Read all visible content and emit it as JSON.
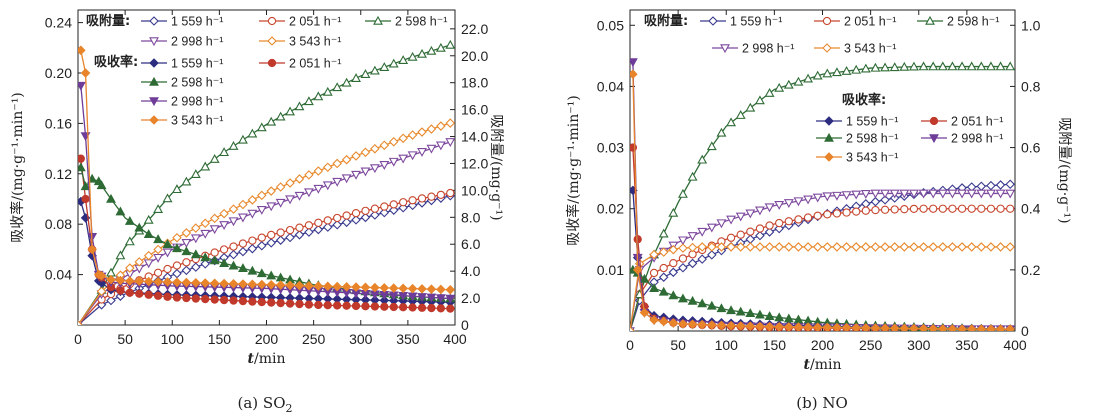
{
  "chart_data": [
    {
      "type": "line",
      "caption": "(a) SO",
      "caption_sub": "2",
      "xlabel_var": "t",
      "xlabel_unit": "/min",
      "ylabel_left": "吸收率/(mg·g⁻¹·min⁻¹)",
      "ylabel_right": "吸附量/(mg·g⁻¹)",
      "xlim": [
        0,
        400
      ],
      "ylim_left": [
        0,
        0.25
      ],
      "ylim_right": [
        0,
        23.4
      ],
      "xticks": [
        "0",
        "50",
        "100",
        "150",
        "200",
        "250",
        "300",
        "350",
        "400"
      ],
      "yticks_left": [
        "0.04",
        "0.08",
        "0.12",
        "0.16",
        "0.20",
        "0.24"
      ],
      "yticks_left_values": [
        0.04,
        0.08,
        0.12,
        0.16,
        0.2,
        0.24
      ],
      "yticks_right": [
        "0",
        "2.0",
        "4.0",
        "6.0",
        "8.0",
        "10.0",
        "12.0",
        "14.0",
        "16.0",
        "18.0",
        "20.0",
        "22.0"
      ],
      "yticks_right_values": [
        0,
        2,
        4,
        6,
        8,
        10,
        12,
        14,
        16,
        18,
        20,
        22
      ],
      "legend_adsorption_title": "吸附量:",
      "legend_rate_title": "吸收率:",
      "adsorption_series": [
        {
          "name": "1 559 h⁻¹",
          "axis": "right",
          "color": "#3b3b8f",
          "marker": "diamond-open",
          "x": [
            0,
            25,
            50,
            100,
            150,
            200,
            250,
            300,
            350,
            395
          ],
          "y": [
            0,
            1.5,
            2.3,
            3.7,
            4.9,
            6.0,
            7.0,
            7.9,
            8.8,
            9.6
          ]
        },
        {
          "name": "2 051 h⁻¹",
          "axis": "right",
          "color": "#c8462e",
          "marker": "circle-open",
          "x": [
            0,
            25,
            50,
            100,
            150,
            200,
            250,
            300,
            350,
            395
          ],
          "y": [
            0,
            1.9,
            2.9,
            4.3,
            5.5,
            6.6,
            7.5,
            8.4,
            9.2,
            9.8
          ]
        },
        {
          "name": "2 598 h⁻¹",
          "axis": "right",
          "color": "#2e6b35",
          "marker": "triangle-open",
          "x": [
            0,
            25,
            50,
            100,
            150,
            200,
            250,
            300,
            350,
            395
          ],
          "y": [
            0,
            2.6,
            5.8,
            9.8,
            12.6,
            14.9,
            16.8,
            18.5,
            19.8,
            20.8
          ]
        },
        {
          "name": "2 998 h⁻¹",
          "axis": "right",
          "color": "#7e4a9e",
          "marker": "triangle-down-open",
          "x": [
            0,
            25,
            50,
            100,
            150,
            200,
            250,
            300,
            350,
            395
          ],
          "y": [
            0,
            2.3,
            3.6,
            5.6,
            7.3,
            8.7,
            10.0,
            11.3,
            12.5,
            13.6
          ]
        },
        {
          "name": "3 543 h⁻¹",
          "axis": "right",
          "color": "#e88a2e",
          "marker": "diamond-open",
          "x": [
            0,
            25,
            50,
            100,
            150,
            200,
            250,
            300,
            350,
            395
          ],
          "y": [
            0,
            2.5,
            4.0,
            6.3,
            8.1,
            9.8,
            11.3,
            12.7,
            14.0,
            15.0
          ]
        }
      ],
      "rate_series": [
        {
          "name": "1 559 h⁻¹",
          "axis": "left",
          "color": "#2d2d80",
          "marker": "diamond",
          "x": [
            3,
            8,
            15,
            22,
            35,
            50,
            100,
            150,
            200,
            250,
            300,
            350,
            395
          ],
          "y": [
            0.098,
            0.085,
            0.055,
            0.035,
            0.028,
            0.026,
            0.024,
            0.023,
            0.022,
            0.021,
            0.02,
            0.019,
            0.018
          ]
        },
        {
          "name": "2 051 h⁻¹",
          "axis": "left",
          "color": "#c0392b",
          "marker": "circle",
          "x": [
            3,
            8,
            15,
            22,
            35,
            50,
            100,
            150,
            200,
            250,
            300,
            350,
            395
          ],
          "y": [
            0.132,
            0.1,
            0.06,
            0.04,
            0.03,
            0.026,
            0.022,
            0.02,
            0.018,
            0.016,
            0.015,
            0.014,
            0.013
          ]
        },
        {
          "name": "2 598 h⁻¹",
          "axis": "left",
          "color": "#2e6b35",
          "marker": "triangle",
          "x": [
            3,
            8,
            15,
            22,
            35,
            50,
            75,
            100,
            150,
            200,
            250,
            300,
            350,
            395
          ],
          "y": [
            0.125,
            0.11,
            0.116,
            0.114,
            0.1,
            0.085,
            0.072,
            0.062,
            0.05,
            0.04,
            0.032,
            0.027,
            0.023,
            0.021
          ]
        },
        {
          "name": "2 998 h⁻¹",
          "axis": "left",
          "color": "#6f3d99",
          "marker": "triangle-down",
          "x": [
            3,
            8,
            15,
            22,
            35,
            50,
            100,
            150,
            200,
            250,
            300,
            350,
            395
          ],
          "y": [
            0.19,
            0.15,
            0.07,
            0.04,
            0.034,
            0.033,
            0.031,
            0.03,
            0.029,
            0.027,
            0.025,
            0.023,
            0.021
          ]
        },
        {
          "name": "3 543 h⁻¹",
          "axis": "left",
          "color": "#e8842a",
          "marker": "diamond",
          "x": [
            3,
            8,
            15,
            22,
            35,
            50,
            100,
            150,
            200,
            250,
            300,
            350,
            395
          ],
          "y": [
            0.218,
            0.2,
            0.06,
            0.04,
            0.036,
            0.035,
            0.034,
            0.033,
            0.032,
            0.031,
            0.03,
            0.029,
            0.028
          ]
        }
      ]
    },
    {
      "type": "line",
      "caption": "(b) NO",
      "xlabel_var": "t",
      "xlabel_unit": "/min",
      "ylabel_left": "吸收率/(mg·g⁻¹·min⁻¹)",
      "ylabel_right": "吸附量/(mg·g⁻¹)",
      "xlim": [
        0,
        400
      ],
      "ylim_left": [
        0,
        0.0525
      ],
      "ylim_right": [
        0,
        1.05
      ],
      "xticks": [
        "0",
        "50",
        "100",
        "150",
        "200",
        "250",
        "300",
        "350",
        "400"
      ],
      "yticks_left": [
        "0.01",
        "0.02",
        "0.03",
        "0.04",
        "0.05"
      ],
      "yticks_left_values": [
        0.01,
        0.02,
        0.03,
        0.04,
        0.05
      ],
      "yticks_right": [
        "0",
        "0.2",
        "0.4",
        "0.6",
        "0.8",
        "1.0"
      ],
      "yticks_right_values": [
        0,
        0.2,
        0.4,
        0.6,
        0.8,
        1.0
      ],
      "legend_adsorption_title": "吸附量:",
      "legend_rate_title": "吸收率:",
      "adsorption_series": [
        {
          "name": "1 559 h⁻¹",
          "axis": "right",
          "color": "#3b3b8f",
          "marker": "diamond-open",
          "x": [
            0,
            10,
            25,
            50,
            100,
            150,
            200,
            250,
            300,
            350,
            395
          ],
          "y": [
            0,
            0.1,
            0.16,
            0.2,
            0.27,
            0.33,
            0.38,
            0.42,
            0.45,
            0.47,
            0.48
          ]
        },
        {
          "name": "2 051 h⁻¹",
          "axis": "right",
          "color": "#c8462e",
          "marker": "circle-open",
          "x": [
            0,
            10,
            25,
            50,
            100,
            150,
            200,
            250,
            300,
            350,
            395
          ],
          "y": [
            0,
            0.12,
            0.19,
            0.23,
            0.3,
            0.35,
            0.38,
            0.395,
            0.4,
            0.4,
            0.4
          ]
        },
        {
          "name": "2 598 h⁻¹",
          "axis": "right",
          "color": "#2e6b35",
          "marker": "triangle-open",
          "x": [
            0,
            10,
            25,
            50,
            75,
            100,
            150,
            200,
            250,
            300,
            350,
            395
          ],
          "y": [
            0,
            0.12,
            0.25,
            0.42,
            0.56,
            0.67,
            0.79,
            0.84,
            0.86,
            0.865,
            0.865,
            0.865
          ]
        },
        {
          "name": "2 998 h⁻¹",
          "axis": "right",
          "color": "#7e4a9e",
          "marker": "triangle-down-open",
          "x": [
            0,
            10,
            25,
            50,
            100,
            150,
            200,
            250,
            300,
            350,
            395
          ],
          "y": [
            0,
            0.2,
            0.24,
            0.29,
            0.36,
            0.41,
            0.44,
            0.45,
            0.45,
            0.45,
            0.45
          ]
        },
        {
          "name": "3 543 h⁻¹",
          "axis": "right",
          "color": "#e88a2e",
          "marker": "diamond-open",
          "x": [
            0,
            10,
            25,
            50,
            75,
            100,
            150,
            200,
            250,
            300,
            350,
            395
          ],
          "y": [
            0,
            0.22,
            0.25,
            0.27,
            0.275,
            0.275,
            0.275,
            0.275,
            0.275,
            0.275,
            0.275,
            0.275
          ]
        }
      ],
      "rate_series": [
        {
          "name": "1 559 h⁻¹",
          "axis": "left",
          "color": "#2d2d80",
          "marker": "diamond",
          "x": [
            3,
            8,
            15,
            25,
            50,
            100,
            150,
            200,
            250,
            300,
            350,
            395
          ],
          "y": [
            0.023,
            0.012,
            0.004,
            0.0025,
            0.0018,
            0.0013,
            0.001,
            0.0008,
            0.0006,
            0.0005,
            0.0004,
            0.0003
          ]
        },
        {
          "name": "2 051 h⁻¹",
          "axis": "left",
          "color": "#c0392b",
          "marker": "circle",
          "x": [
            3,
            8,
            15,
            25,
            50,
            100,
            150,
            200,
            250,
            300,
            350,
            395
          ],
          "y": [
            0.03,
            0.015,
            0.004,
            0.002,
            0.0012,
            0.0008,
            0.0006,
            0.0005,
            0.0004,
            0.0003,
            0.0003,
            0.0003
          ]
        },
        {
          "name": "2 598 h⁻¹",
          "axis": "left",
          "color": "#2e6b35",
          "marker": "triangle",
          "x": [
            3,
            8,
            15,
            25,
            50,
            75,
            100,
            150,
            200,
            250,
            300,
            350,
            395
          ],
          "y": [
            0.01,
            0.0095,
            0.0085,
            0.007,
            0.0055,
            0.0045,
            0.0035,
            0.0023,
            0.0014,
            0.0009,
            0.0006,
            0.0004,
            0.0003
          ]
        },
        {
          "name": "2 998 h⁻¹",
          "axis": "left",
          "color": "#6f3d99",
          "marker": "triangle-down",
          "x": [
            3,
            8,
            15,
            25,
            50,
            100,
            150,
            200,
            250,
            300,
            350,
            395
          ],
          "y": [
            0.044,
            0.012,
            0.003,
            0.0018,
            0.0012,
            0.0009,
            0.0007,
            0.0006,
            0.0005,
            0.0004,
            0.0003,
            0.0003
          ]
        },
        {
          "name": "3 543 h⁻¹",
          "axis": "left",
          "color": "#e8842a",
          "marker": "diamond",
          "x": [
            3,
            8,
            15,
            25,
            50,
            100,
            150,
            200,
            250,
            300,
            350,
            395
          ],
          "y": [
            0.042,
            0.01,
            0.003,
            0.0018,
            0.0012,
            0.0009,
            0.0007,
            0.0006,
            0.0005,
            0.0004,
            0.0003,
            0.0003
          ]
        }
      ]
    }
  ]
}
